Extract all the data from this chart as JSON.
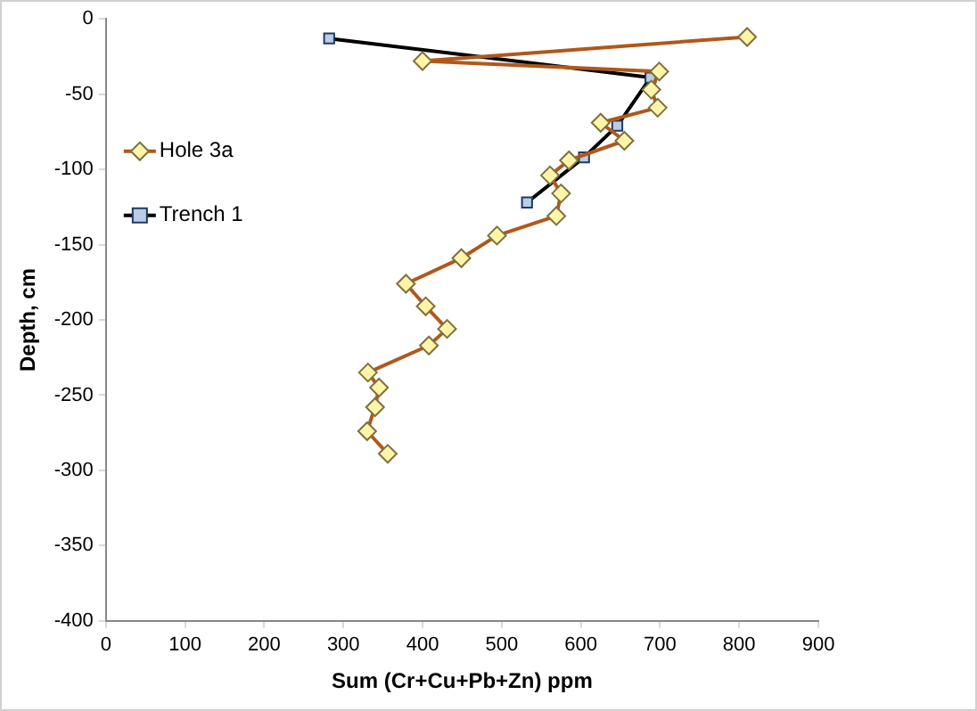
{
  "chart_data": {
    "type": "line",
    "xlabel": "Sum (Cr+Cu+Pb+Zn) ppm",
    "ylabel": "Depth, cm",
    "xlim": [
      0,
      900
    ],
    "xticks": [
      0,
      100,
      200,
      300,
      400,
      500,
      600,
      700,
      800,
      900
    ],
    "ylim": [
      -400,
      0
    ],
    "yticks": [
      -400,
      -350,
      -300,
      -250,
      -200,
      -150,
      -100,
      -50,
      0
    ],
    "grid": false,
    "legend": "left",
    "series": [
      {
        "name": "Hole 3a",
        "color": "#b0581a",
        "marker": "diamond",
        "x": [
          810,
          400,
          699,
          689,
          697,
          625,
          655,
          585,
          561,
          575,
          569,
          494,
          449,
          379,
          404,
          431,
          408,
          331,
          345,
          340,
          330,
          356
        ],
        "values": [
          -12,
          -28,
          -35,
          -47,
          -59,
          -69,
          -81,
          -94,
          -104,
          -116,
          -131,
          -144,
          -159,
          -176,
          -191,
          -206,
          -217,
          -235,
          -245,
          -258,
          -274,
          -289
        ]
      },
      {
        "name": "Trench 1",
        "color": "#000000",
        "marker": "square",
        "x": [
          282,
          688,
          646,
          604,
          532
        ],
        "values": [
          -13,
          -39,
          -71,
          -92,
          -122
        ]
      }
    ]
  }
}
